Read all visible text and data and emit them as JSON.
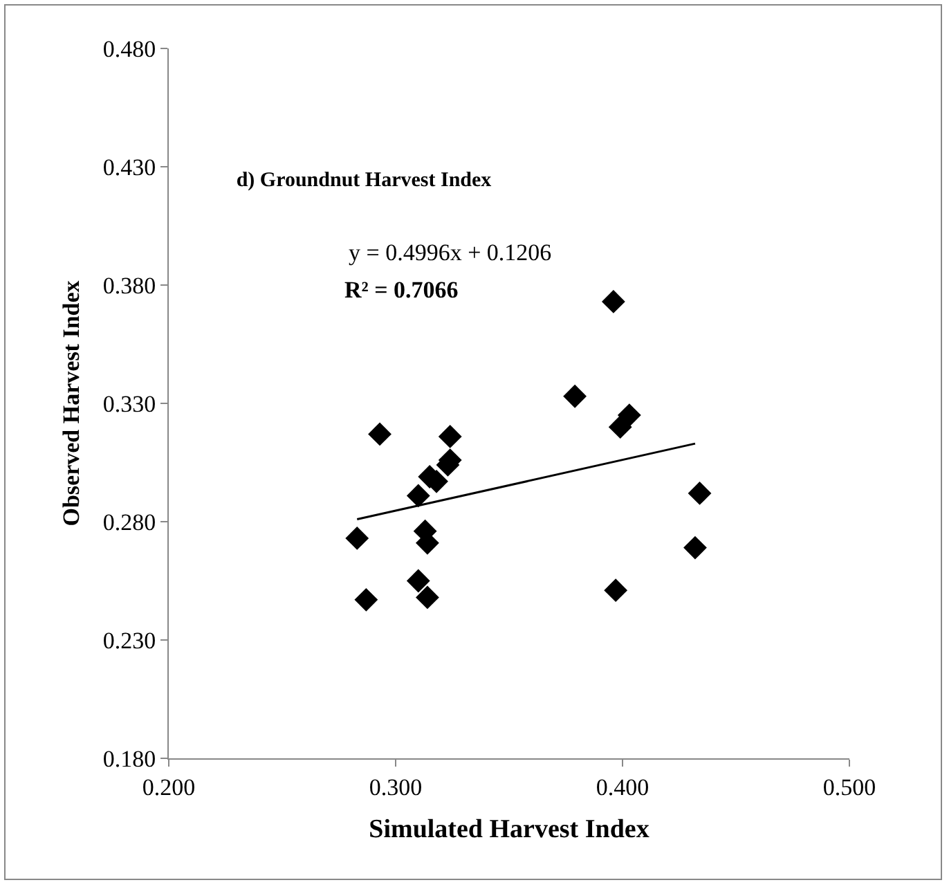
{
  "chart_data": {
    "type": "scatter",
    "title": "d) Groundnut Harvest Index",
    "xlabel": "Simulated Harvest Index",
    "ylabel": "Observed Harvest Index",
    "annotations": [
      "y = 0.4996x + 0.1206",
      "R² = 0.7066"
    ],
    "x": [
      0.283,
      0.287,
      0.293,
      0.31,
      0.31,
      0.313,
      0.314,
      0.314,
      0.315,
      0.318,
      0.323,
      0.324,
      0.324,
      0.379,
      0.396,
      0.397,
      0.399,
      0.403,
      0.432,
      0.434
    ],
    "series": [
      {
        "color": "#000000",
        "values": [
          0.273,
          0.247,
          0.317,
          0.291,
          0.255,
          0.276,
          0.271,
          0.248,
          0.299,
          0.297,
          0.304,
          0.306,
          0.316,
          0.333,
          0.373,
          0.251,
          0.32,
          0.325,
          0.269,
          0.292
        ]
      },
      {
        "type": "line",
        "color": "#000000",
        "x": [
          0.283,
          0.432
        ],
        "values": [
          0.281,
          0.313
        ],
        "marker": "none",
        "line_style": "solid"
      }
    ],
    "marker": "diamond",
    "grid": false,
    "xlim": [
      0.2,
      0.5
    ],
    "xticks": [
      {
        "value": 0.2,
        "label": "0.200"
      },
      {
        "value": 0.3,
        "label": "0.300"
      },
      {
        "value": 0.4,
        "label": "0.400"
      },
      {
        "value": 0.5,
        "label": "0.500"
      }
    ],
    "ylim": [
      0.18,
      0.48
    ],
    "yticks": [
      {
        "value": 0.18,
        "label": "0.180"
      },
      {
        "value": 0.23,
        "label": "0.230"
      },
      {
        "value": 0.28,
        "label": "0.280"
      },
      {
        "value": 0.33,
        "label": "0.330"
      },
      {
        "value": 0.38,
        "label": "0.380"
      },
      {
        "value": 0.43,
        "label": "0.430"
      },
      {
        "value": 0.48,
        "label": "0.480"
      }
    ]
  }
}
